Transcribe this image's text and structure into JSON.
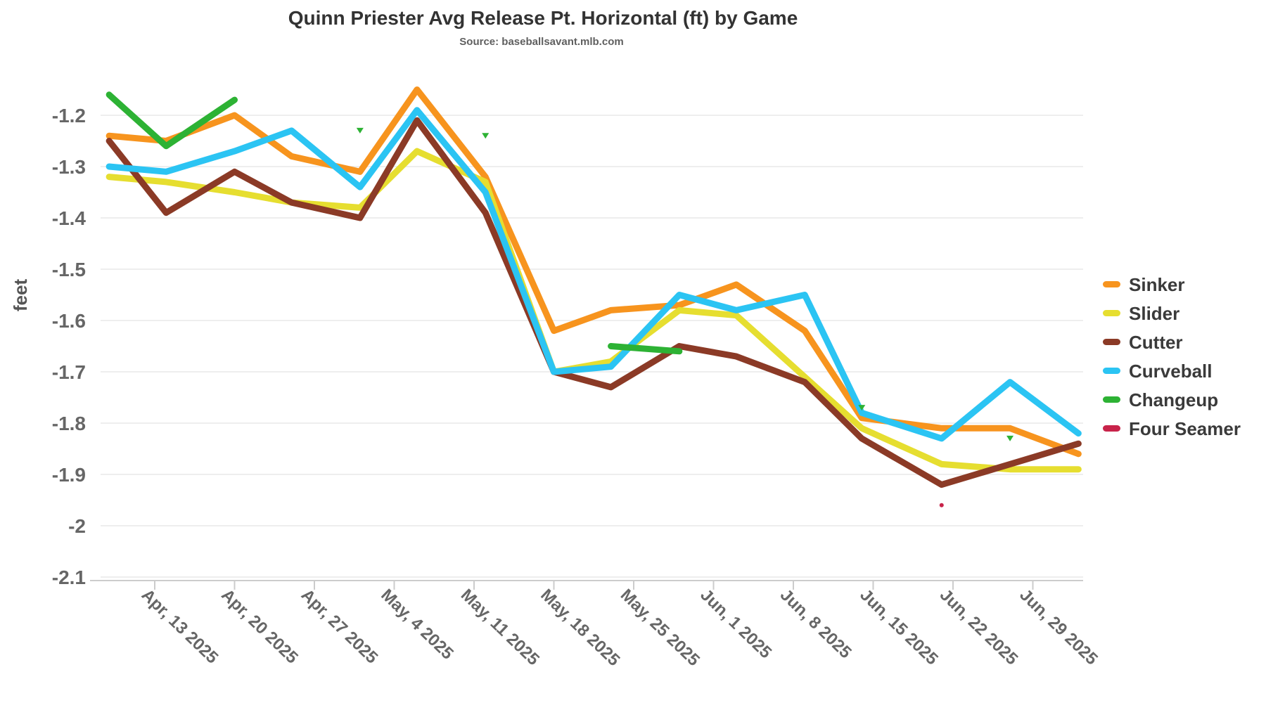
{
  "title": "Quinn Priester Avg Release Pt. Horizontal (ft) by Game",
  "subtitle": "Source: baseballsavant.mlb.com",
  "chart_data": {
    "type": "line",
    "title": "Quinn Priester Avg Release Pt. Horizontal (ft) by Game",
    "subtitle": "Source: baseballsavant.mlb.com",
    "ylabel": "feet",
    "ylim": [
      -2.1,
      -1.12
    ],
    "grid": "horizontal-only",
    "legend_position": "right",
    "point_x_unit": "days relative to the Apr 13 2025 tick (estimated from time axis)",
    "x_axis": {
      "tick_labels": [
        "Apr, 13 2025",
        "Apr, 20 2025",
        "Apr, 27 2025",
        "May, 4 2025",
        "May, 11 2025",
        "May, 18 2025",
        "May, 25 2025",
        "Jun, 1 2025",
        "Jun, 8 2025",
        "Jun, 15 2025",
        "Jun, 22 2025",
        "Jun, 29 2025"
      ],
      "tick_days": [
        0,
        7,
        14,
        21,
        28,
        35,
        42,
        49,
        56,
        63,
        70,
        77
      ]
    },
    "y_axis": {
      "ticks": [
        {
          "value": -1.2,
          "label": "-1.2"
        },
        {
          "value": -1.3,
          "label": "-1.3"
        },
        {
          "value": -1.4,
          "label": "-1.4"
        },
        {
          "value": -1.5,
          "label": "-1.5"
        },
        {
          "value": -1.6,
          "label": "-1.6"
        },
        {
          "value": -1.7,
          "label": "-1.7"
        },
        {
          "value": -1.8,
          "label": "-1.8"
        },
        {
          "value": -1.9,
          "label": "-1.9"
        },
        {
          "value": -2.0,
          "label": "-2"
        },
        {
          "value": -2.1,
          "label": "-2.1"
        }
      ]
    },
    "series": [
      {
        "name": "Sinker",
        "color": "#F7941E",
        "marker": "none",
        "segments": [
          [
            [
              -4,
              -1.24
            ],
            [
              1,
              -1.25
            ],
            [
              7,
              -1.2
            ],
            [
              12,
              -1.28
            ],
            [
              18,
              -1.31
            ],
            [
              23,
              -1.15
            ],
            [
              29,
              -1.32
            ],
            [
              35,
              -1.62
            ],
            [
              40,
              -1.58
            ],
            [
              46,
              -1.57
            ],
            [
              51,
              -1.53
            ],
            [
              57,
              -1.62
            ],
            [
              62,
              -1.79
            ],
            [
              69,
              -1.81
            ],
            [
              75,
              -1.81
            ],
            [
              81,
              -1.86
            ]
          ]
        ],
        "isolated_points": []
      },
      {
        "name": "Slider",
        "color": "#E6DE30",
        "marker": "none",
        "segments": [
          [
            [
              -4,
              -1.32
            ],
            [
              1,
              -1.33
            ],
            [
              7,
              -1.35
            ],
            [
              12,
              -1.37
            ],
            [
              18,
              -1.38
            ],
            [
              23,
              -1.27
            ],
            [
              29,
              -1.33
            ],
            [
              35,
              -1.7
            ],
            [
              40,
              -1.68
            ],
            [
              46,
              -1.58
            ],
            [
              51,
              -1.59
            ],
            [
              57,
              -1.71
            ],
            [
              62,
              -1.81
            ],
            [
              69,
              -1.88
            ],
            [
              75,
              -1.89
            ],
            [
              81,
              -1.89
            ]
          ]
        ],
        "isolated_points": []
      },
      {
        "name": "Cutter",
        "color": "#8B3A26",
        "marker": "none",
        "segments": [
          [
            [
              -4,
              -1.25
            ],
            [
              1,
              -1.39
            ],
            [
              7,
              -1.31
            ],
            [
              12,
              -1.37
            ],
            [
              18,
              -1.4
            ],
            [
              23,
              -1.21
            ],
            [
              29,
              -1.39
            ],
            [
              35,
              -1.7
            ],
            [
              40,
              -1.73
            ],
            [
              46,
              -1.65
            ],
            [
              51,
              -1.67
            ],
            [
              57,
              -1.72
            ],
            [
              62,
              -1.83
            ],
            [
              69,
              -1.92
            ],
            [
              75,
              -1.88
            ],
            [
              81,
              -1.84
            ]
          ]
        ],
        "isolated_points": []
      },
      {
        "name": "Curveball",
        "color": "#2BC4F3",
        "marker": "none",
        "segments": [
          [
            [
              -4,
              -1.3
            ],
            [
              1,
              -1.31
            ],
            [
              7,
              -1.27
            ],
            [
              12,
              -1.23
            ],
            [
              18,
              -1.34
            ],
            [
              23,
              -1.19
            ],
            [
              29,
              -1.35
            ],
            [
              35,
              -1.7
            ],
            [
              40,
              -1.69
            ],
            [
              46,
              -1.55
            ],
            [
              51,
              -1.58
            ],
            [
              57,
              -1.55
            ],
            [
              62,
              -1.78
            ],
            [
              69,
              -1.83
            ],
            [
              75,
              -1.72
            ],
            [
              81,
              -1.82
            ]
          ]
        ],
        "isolated_points": []
      },
      {
        "name": "Changeup",
        "color": "#2DB234",
        "marker": "triangle-down",
        "segments": [
          [
            [
              -4,
              -1.16
            ],
            [
              1,
              -1.26
            ],
            [
              7,
              -1.17
            ]
          ],
          [
            [
              40,
              -1.65
            ],
            [
              46,
              -1.66
            ]
          ]
        ],
        "isolated_points": [
          [
            18,
            -1.23
          ],
          [
            29,
            -1.24
          ],
          [
            62,
            -1.77
          ],
          [
            75,
            -1.83
          ]
        ]
      },
      {
        "name": "Four Seamer",
        "color": "#C8234A",
        "marker": "circle",
        "segments": [],
        "isolated_points": [
          [
            69,
            -1.96
          ]
        ]
      }
    ]
  }
}
